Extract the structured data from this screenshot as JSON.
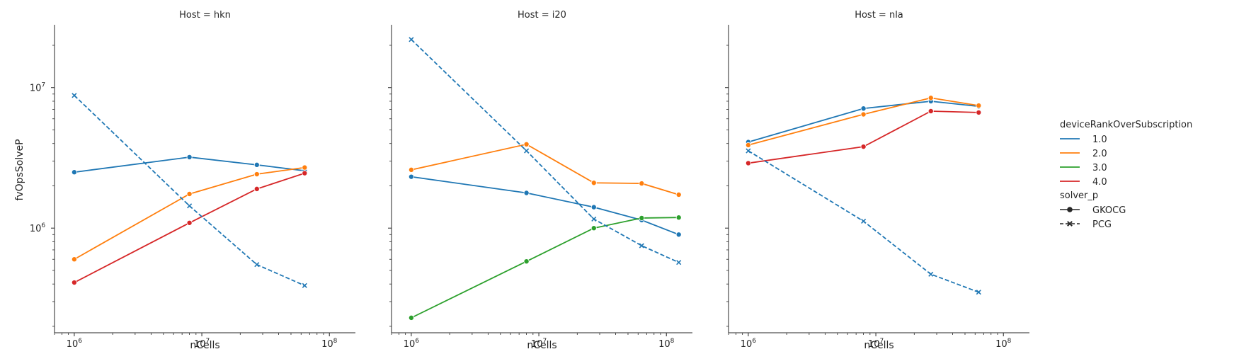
{
  "chart_data": {
    "type": "line",
    "x_scale": "log",
    "y_scale": "log",
    "xlim": [
      700000,
      160000000
    ],
    "ylim": [
      180000,
      28000000
    ],
    "xlabel": "nCells",
    "ylabel": "fvOpsSolveP",
    "x_ticks": [
      {
        "value": 1000000,
        "base": "10",
        "exp": "6"
      },
      {
        "value": 10000000,
        "base": "10",
        "exp": "7"
      },
      {
        "value": 100000000,
        "base": "10",
        "exp": "8"
      }
    ],
    "y_ticks": [
      {
        "value": 1000000,
        "base": "10",
        "exp": "6"
      },
      {
        "value": 10000000,
        "base": "10",
        "exp": "7"
      }
    ],
    "legend": {
      "placement": "right",
      "hue_title": "deviceRankOverSubscription",
      "hue_entries": [
        {
          "label": "1.0",
          "color": "#1f77b4"
        },
        {
          "label": "2.0",
          "color": "#ff7f0e"
        },
        {
          "label": "3.0",
          "color": "#2ca02c"
        },
        {
          "label": "4.0",
          "color": "#d62728"
        }
      ],
      "style_title": "solver_p",
      "style_entries": [
        {
          "label": "GKOCG",
          "marker": "circle",
          "dash": "solid"
        },
        {
          "label": "PCG",
          "marker": "x",
          "dash": "dashed"
        }
      ]
    },
    "panels": [
      {
        "title": "Host = hkn",
        "series": [
          {
            "hue": "1.0",
            "style": "GKOCG",
            "color": "#1f77b4",
            "x": [
              1000000,
              8000000,
              27000000,
              64000000
            ],
            "y": [
              2500000,
              3200000,
              2820000,
              2560000
            ]
          },
          {
            "hue": "2.0",
            "style": "GKOCG",
            "color": "#ff7f0e",
            "x": [
              1000000,
              8000000,
              27000000,
              64000000
            ],
            "y": [
              600000,
              1750000,
              2420000,
              2700000
            ]
          },
          {
            "hue": "4.0",
            "style": "GKOCG",
            "color": "#d62728",
            "x": [
              1000000,
              8000000,
              27000000,
              64000000
            ],
            "y": [
              410000,
              1090000,
              1900000,
              2460000
            ]
          },
          {
            "hue": "1.0",
            "style": "PCG",
            "color": "#1f77b4",
            "x": [
              1000000,
              8000000,
              27000000,
              64000000
            ],
            "y": [
              8800000,
              1440000,
              550000,
              390000
            ]
          }
        ]
      },
      {
        "title": "Host = i20",
        "series": [
          {
            "hue": "1.0",
            "style": "GKOCG",
            "color": "#1f77b4",
            "x": [
              1000000,
              8000000,
              27000000,
              64000000,
              125000000
            ],
            "y": [
              2320000,
              1780000,
              1410000,
              1140000,
              900000
            ]
          },
          {
            "hue": "2.0",
            "style": "GKOCG",
            "color": "#ff7f0e",
            "x": [
              1000000,
              8000000,
              27000000,
              64000000,
              125000000
            ],
            "y": [
              2600000,
              3950000,
              2100000,
              2080000,
              1730000
            ]
          },
          {
            "hue": "3.0",
            "style": "GKOCG",
            "color": "#2ca02c",
            "x": [
              1000000,
              8000000,
              27000000,
              64000000,
              125000000
            ],
            "y": [
              230000,
              580000,
              1000000,
              1180000,
              1190000
            ]
          },
          {
            "hue": "1.0",
            "style": "PCG",
            "color": "#1f77b4",
            "x": [
              1000000,
              8000000,
              27000000,
              64000000,
              125000000
            ],
            "y": [
              22000000,
              3550000,
              1160000,
              750000,
              570000
            ]
          }
        ]
      },
      {
        "title": "Host = nla",
        "series": [
          {
            "hue": "1.0",
            "style": "GKOCG",
            "color": "#1f77b4",
            "x": [
              1000000,
              8000000,
              27000000,
              64000000
            ],
            "y": [
              4100000,
              7100000,
              8000000,
              7350000
            ]
          },
          {
            "hue": "2.0",
            "style": "GKOCG",
            "color": "#ff7f0e",
            "x": [
              1000000,
              8000000,
              27000000,
              64000000
            ],
            "y": [
              3900000,
              6450000,
              8450000,
              7450000
            ]
          },
          {
            "hue": "4.0",
            "style": "GKOCG",
            "color": "#d62728",
            "x": [
              1000000,
              8000000,
              27000000,
              64000000
            ],
            "y": [
              2900000,
              3800000,
              6800000,
              6650000
            ]
          },
          {
            "hue": "1.0",
            "style": "PCG",
            "color": "#1f77b4",
            "x": [
              1000000,
              8000000,
              27000000,
              64000000
            ],
            "y": [
              3550000,
              1120000,
              470000,
              350000
            ]
          }
        ]
      }
    ]
  }
}
